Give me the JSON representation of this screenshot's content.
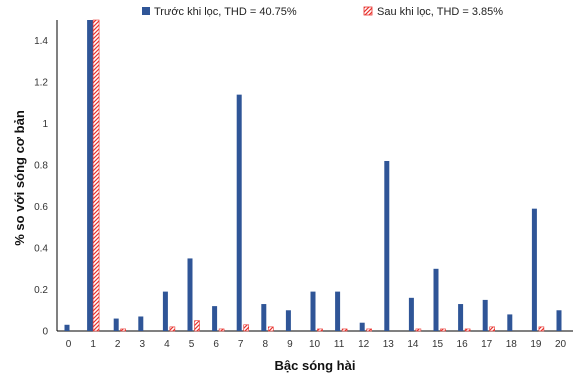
{
  "chart_data": {
    "type": "bar",
    "xlabel": "Bậc sóng hài",
    "ylabel": "% so với sóng cơ bản",
    "ylim": [
      0,
      1.5
    ],
    "yticks": [
      "0",
      "0.2",
      "0.4",
      "0.6",
      "0.8",
      "1",
      "1.2",
      "1.4"
    ],
    "categories": [
      "0",
      "1",
      "2",
      "3",
      "4",
      "5",
      "6",
      "7",
      "8",
      "9",
      "10",
      "11",
      "12",
      "13",
      "14",
      "15",
      "16",
      "17",
      "18",
      "19",
      "20"
    ],
    "legend_position": "top",
    "grid": false,
    "series": [
      {
        "name": "Trước khi lọc, THD = 40.75%",
        "color": "#2F5597",
        "pattern": "solid",
        "values": [
          0.03,
          1.5,
          0.06,
          0.07,
          0.19,
          0.35,
          0.12,
          1.14,
          0.13,
          0.1,
          0.19,
          0.19,
          0.04,
          0.82,
          0.16,
          0.3,
          0.13,
          0.15,
          0.08,
          0.59,
          0.1
        ]
      },
      {
        "name": "Sau khi lọc, THD = 3.85%",
        "color": "#E8332E",
        "pattern": "hatched",
        "values": [
          0,
          1.5,
          0.01,
          0,
          0.02,
          0.05,
          0.01,
          0.03,
          0.02,
          0,
          0.01,
          0.01,
          0.01,
          0,
          0.01,
          0.01,
          0.01,
          0.02,
          0,
          0.02,
          0
        ]
      }
    ]
  }
}
